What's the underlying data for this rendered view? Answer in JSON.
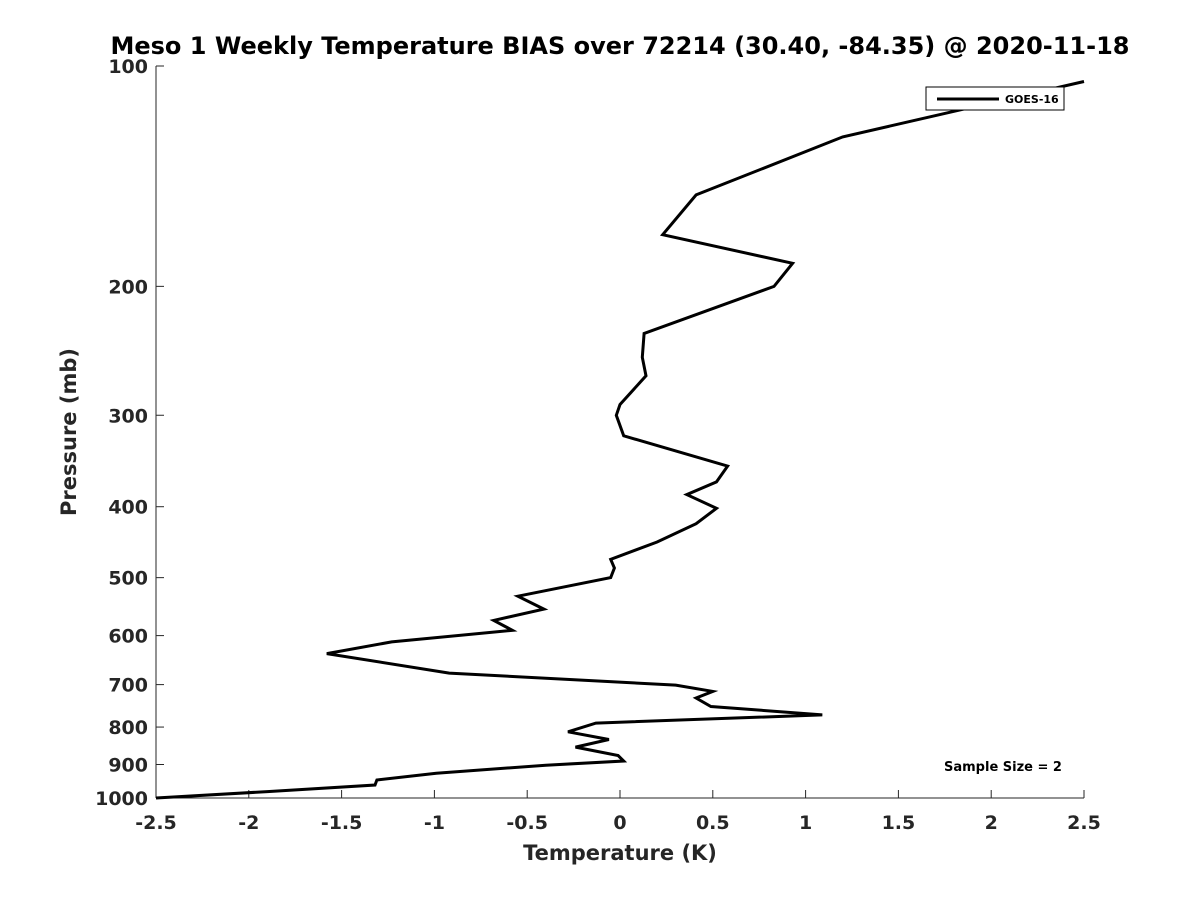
{
  "chart_data": {
    "type": "line",
    "title": "Meso 1 Weekly Temperature BIAS over 72214 (30.40, -84.35) @ 2020-11-18",
    "xlabel": "Temperature (K)",
    "ylabel": "Pressure (mb)",
    "xlim": [
      -2.5,
      2.5
    ],
    "ylim": [
      100,
      1000
    ],
    "y_scale": "log",
    "y_reversed": true,
    "xticks": [
      -2.5,
      -2,
      -1.5,
      -1,
      -0.5,
      0,
      0.5,
      1,
      1.5,
      2,
      2.5
    ],
    "xtick_labels": [
      "-2.5",
      "-2",
      "-1.5",
      "-1",
      "-0.5",
      "0",
      "0.5",
      "1",
      "1.5",
      "2",
      "2.5"
    ],
    "yticks": [
      100,
      200,
      300,
      400,
      500,
      600,
      700,
      800,
      900,
      1000
    ],
    "ytick_labels": [
      "100",
      "200",
      "300",
      "400",
      "500",
      "600",
      "700",
      "800",
      "900",
      "1000"
    ],
    "grid": false,
    "legend_position": "top-right",
    "annotation": "Sample Size = 2",
    "series": [
      {
        "name": "GOES-16",
        "color": "#000000",
        "x": [
          2.5,
          1.2,
          0.41,
          0.23,
          0.93,
          0.83,
          0.13,
          0.12,
          0.14,
          0.0,
          -0.02,
          0.02,
          0.58,
          0.52,
          0.36,
          0.52,
          0.41,
          0.2,
          -0.05,
          -0.03,
          -0.05,
          -0.55,
          -0.41,
          -0.68,
          -0.58,
          -1.23,
          -1.58,
          -0.92,
          0.3,
          0.5,
          0.41,
          0.49,
          1.09,
          -0.13,
          -0.28,
          -0.06,
          -0.24,
          -0.01,
          0.02,
          -0.4,
          -0.99,
          -1.31,
          -1.32,
          -1.9,
          -2.5
        ],
        "y": [
          105,
          125,
          150,
          170,
          186,
          200,
          232,
          250,
          265,
          290,
          300,
          320,
          352,
          370,
          385,
          402,
          422,
          447,
          472,
          485,
          500,
          530,
          552,
          572,
          590,
          612,
          635,
          675,
          701,
          715,
          730,
          750,
          770,
          790,
          812,
          832,
          852,
          875,
          890,
          902,
          925,
          945,
          960,
          980,
          1000
        ]
      }
    ]
  }
}
